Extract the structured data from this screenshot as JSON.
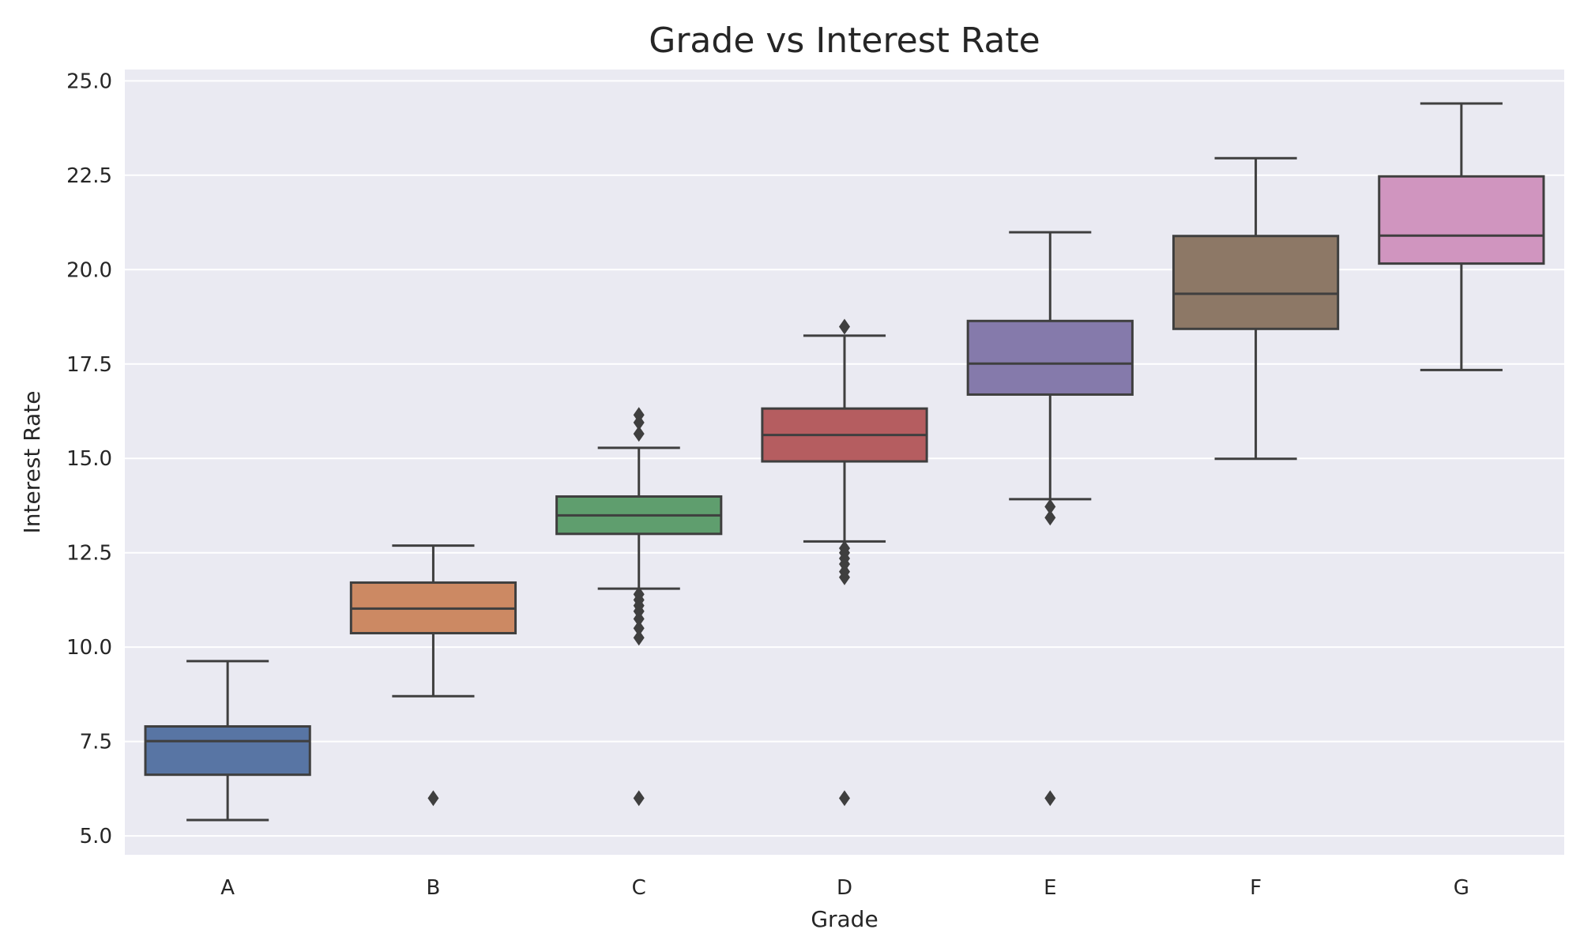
{
  "colors": {
    "panel_bg": "#EAEAF2",
    "grid": "#FFFFFF",
    "lines": "#3F3F3F",
    "text": "#262626"
  },
  "chart_data": {
    "type": "boxplot",
    "title": "Grade vs Interest Rate",
    "xlabel": "Grade",
    "ylabel": "Interest Rate",
    "ylim": [
      4.5,
      25.3
    ],
    "yticks": [
      5.0,
      7.5,
      10.0,
      12.5,
      15.0,
      17.5,
      20.0,
      22.5,
      25.0
    ],
    "ytick_labels": [
      "5.0",
      "7.5",
      "10.0",
      "12.5",
      "15.0",
      "17.5",
      "20.0",
      "22.5",
      "25.0"
    ],
    "grid": true,
    "categories": [
      "A",
      "B",
      "C",
      "D",
      "E",
      "F",
      "G"
    ],
    "boxes": [
      {
        "category": "A",
        "color": "#5875A4",
        "whisker_low": 5.42,
        "q1": 6.62,
        "median": 7.51,
        "q3": 7.9,
        "whisker_high": 9.63,
        "outliers": []
      },
      {
        "category": "B",
        "color": "#CC8963",
        "whisker_low": 8.7,
        "q1": 10.37,
        "median": 11.02,
        "q3": 11.71,
        "whisker_high": 12.69,
        "outliers": [
          6.0
        ]
      },
      {
        "category": "C",
        "color": "#5F9E6E",
        "whisker_low": 11.55,
        "q1": 13.0,
        "median": 13.49,
        "q3": 13.99,
        "whisker_high": 15.28,
        "outliers": [
          6.0,
          10.25,
          10.5,
          10.75,
          10.95,
          11.1,
          11.25,
          11.4,
          15.65,
          15.95,
          16.15
        ]
      },
      {
        "category": "D",
        "color": "#B55D60",
        "whisker_low": 12.8,
        "q1": 14.92,
        "median": 15.62,
        "q3": 16.32,
        "whisker_high": 18.25,
        "outliers": [
          6.0,
          11.85,
          12.0,
          12.2,
          12.35,
          12.5,
          12.62,
          18.49
        ]
      },
      {
        "category": "E",
        "color": "#857AAB",
        "whisker_low": 13.92,
        "q1": 16.69,
        "median": 17.51,
        "q3": 18.64,
        "whisker_high": 20.99,
        "outliers": [
          6.0,
          13.43,
          13.72
        ]
      },
      {
        "category": "F",
        "color": "#8D7866",
        "whisker_low": 14.99,
        "q1": 18.43,
        "median": 19.36,
        "q3": 20.89,
        "whisker_high": 22.95,
        "outliers": []
      },
      {
        "category": "G",
        "color": "#D095BF",
        "whisker_low": 17.34,
        "q1": 20.16,
        "median": 20.9,
        "q3": 22.47,
        "whisker_high": 24.4,
        "outliers": []
      }
    ]
  }
}
